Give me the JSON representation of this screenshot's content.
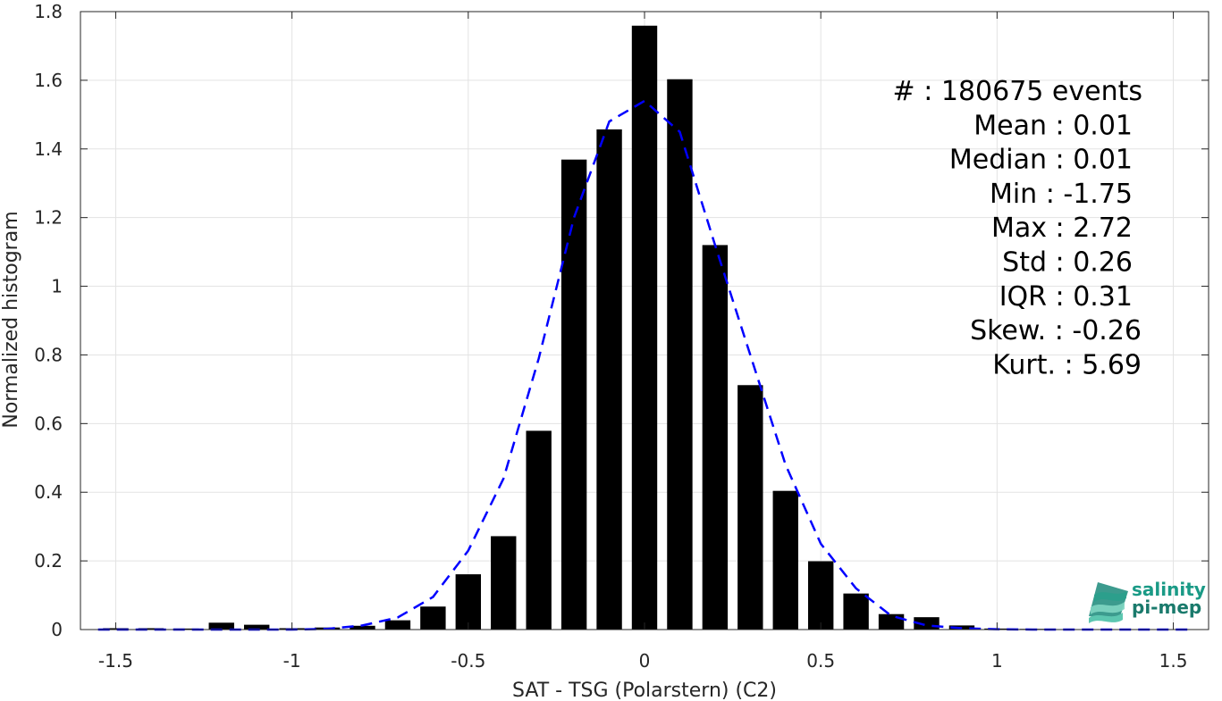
{
  "chart_data": {
    "type": "bar",
    "xlabel": "SAT - TSG (Polarstern) (C2)",
    "ylabel": "Normalized histogram",
    "xlim": [
      -1.6,
      1.6
    ],
    "ylim": [
      0,
      1.8
    ],
    "grid": true,
    "xticks": [
      -1.5,
      -1,
      -0.5,
      0,
      0.5,
      1,
      1.5
    ],
    "xtick_labels": [
      "-1.5",
      "-1",
      "-0.5",
      "0",
      "0.5",
      "1",
      "1.5"
    ],
    "yticks": [
      0,
      0.2,
      0.4,
      0.6,
      0.8,
      1,
      1.2,
      1.4,
      1.6,
      1.8
    ],
    "ytick_labels": [
      "0",
      "0.2",
      "0.4",
      "0.6",
      "0.8",
      "1",
      "1.2",
      "1.4",
      "1.6",
      "1.8"
    ],
    "bar_color": "#000000",
    "bar_width": 0.072,
    "bars": {
      "x": [
        -1.5,
        -1.4,
        -1.3,
        -1.2,
        -1.1,
        -1.0,
        -0.9,
        -0.8,
        -0.7,
        -0.6,
        -0.5,
        -0.4,
        -0.3,
        -0.2,
        -0.1,
        0.0,
        0.1,
        0.2,
        0.3,
        0.4,
        0.5,
        0.6,
        0.7,
        0.8,
        0.9,
        1.0,
        1.1,
        1.2,
        1.3,
        1.4,
        1.5
      ],
      "values": [
        0.004,
        0.004,
        0.003,
        0.02,
        0.014,
        0.004,
        0.006,
        0.011,
        0.027,
        0.067,
        0.161,
        0.272,
        0.579,
        1.369,
        1.457,
        1.759,
        1.603,
        1.12,
        0.712,
        0.404,
        0.199,
        0.105,
        0.045,
        0.036,
        0.012,
        0.003,
        0.002,
        0.001,
        0.001,
        0.001,
        0.001
      ]
    },
    "fit_line": {
      "color": "#0000ff",
      "style": "dashed",
      "x": [
        -1.55,
        -1.5,
        -1.4,
        -1.3,
        -1.2,
        -1.1,
        -1.0,
        -0.9,
        -0.8,
        -0.7,
        -0.6,
        -0.5,
        -0.4,
        -0.3,
        -0.2,
        -0.1,
        0.0,
        0.1,
        0.2,
        0.3,
        0.4,
        0.5,
        0.6,
        0.7,
        0.8,
        0.9,
        1.0,
        1.1,
        1.2,
        1.3,
        1.4,
        1.5,
        1.55
      ],
      "y": [
        0.0,
        0.0,
        0.0,
        0.0,
        0.0,
        0.0,
        0.0,
        0.002,
        0.012,
        0.035,
        0.095,
        0.23,
        0.44,
        0.79,
        1.2,
        1.48,
        1.54,
        1.45,
        1.12,
        0.8,
        0.48,
        0.25,
        0.12,
        0.04,
        0.012,
        0.004,
        0.001,
        0.0,
        0.0,
        0.0,
        0.0,
        0.0,
        0.0
      ]
    },
    "annotations": [
      "#  : 180675 events",
      "Mean : 0.01",
      "Median : 0.01",
      "Min : -1.75",
      "Max : 2.72",
      "Std : 0.26",
      "IQR : 0.31",
      "Skew. : -0.26",
      "Kurt. : 5.69"
    ]
  },
  "logo": {
    "line1": "salinity",
    "line2": "pi-mep",
    "color_dark": "#1a8a7a",
    "color_light": "#5cc7b0"
  }
}
